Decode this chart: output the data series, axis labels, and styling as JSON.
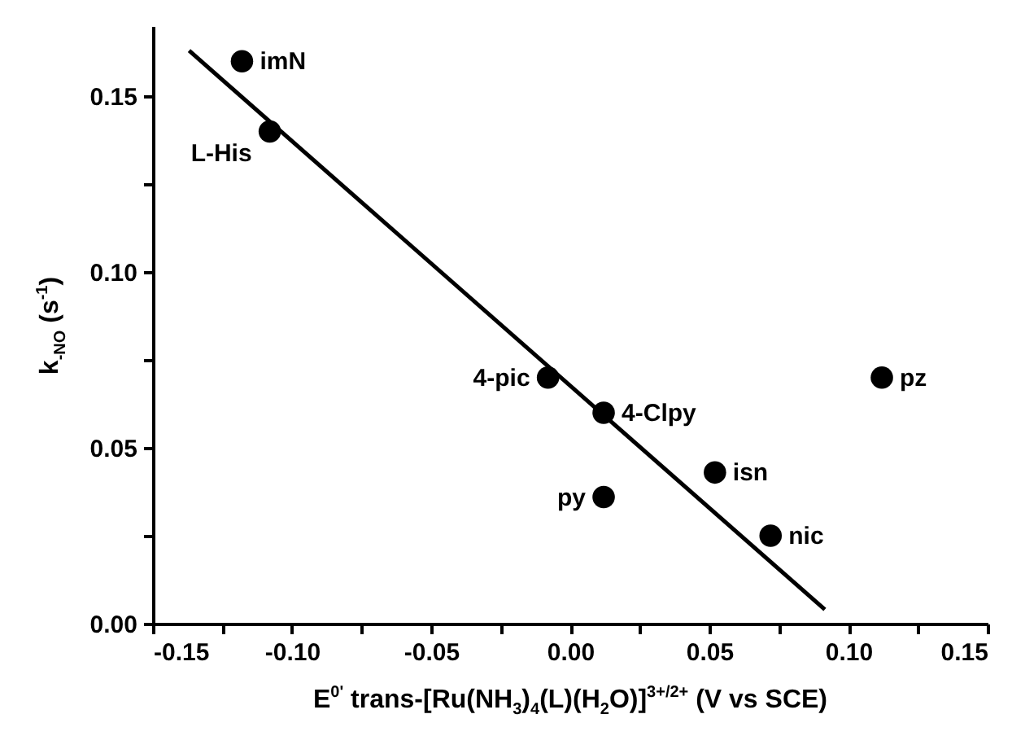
{
  "chart_data": {
    "type": "scatter",
    "xlabel": "E$^{0'}$ trans-[Ru(NH$_{3}$)$_{4}$(L)(H$_{2}$O)]$^{3+/2+}$ (V vs SCE)",
    "ylabel": "k$_{-NO}$ (s$^{-1}$)",
    "series": [
      {
        "marker": "circle",
        "color": "#000000",
        "x": [
          -0.118,
          -0.108,
          -0.008,
          0.012,
          0.012,
          0.052,
          0.072,
          0.112
        ],
        "values": [
          0.16,
          0.14,
          0.07,
          0.06,
          0.036,
          0.043,
          0.025,
          0.07
        ]
      },
      {
        "type": "line",
        "color": "#000000",
        "x": [
          -0.137,
          0.0915
        ],
        "values": [
          0.163,
          0.004
        ]
      }
    ],
    "annotations": [
      {
        "text": "imN",
        "x": -0.118,
        "y": 0.16
      },
      {
        "text": "L-His",
        "x": -0.108,
        "y": 0.14
      },
      {
        "text": "4-pic",
        "x": -0.008,
        "y": 0.07
      },
      {
        "text": "4-Clpy",
        "x": 0.012,
        "y": 0.06
      },
      {
        "text": "py",
        "x": 0.012,
        "y": 0.036
      },
      {
        "text": "isn",
        "x": 0.052,
        "y": 0.043
      },
      {
        "text": "nic",
        "x": 0.072,
        "y": 0.025
      },
      {
        "text": "pz",
        "x": 0.112,
        "y": 0.07
      }
    ],
    "xlim": [
      -0.15,
      0.15
    ],
    "xticks": [
      {
        "value": -0.15,
        "label": "-0.15"
      },
      {
        "value": -0.125,
        "label": null
      },
      {
        "value": -0.1,
        "label": "-0.10"
      },
      {
        "value": -0.075,
        "label": null
      },
      {
        "value": -0.05,
        "label": "-0.05"
      },
      {
        "value": -0.025,
        "label": null
      },
      {
        "value": 0,
        "label": "0.00"
      },
      {
        "value": 0.025,
        "label": null
      },
      {
        "value": 0.05,
        "label": "0.05"
      },
      {
        "value": 0.075,
        "label": null
      },
      {
        "value": 0.1,
        "label": "0.10"
      },
      {
        "value": 0.125,
        "label": null
      },
      {
        "value": 0.15,
        "label": "0.15"
      }
    ],
    "ylim": [
      0,
      0.17
    ],
    "yticks": [
      {
        "value": 0,
        "label": "0.00"
      },
      {
        "value": 0.025,
        "label": null
      },
      {
        "value": 0.05,
        "label": "0.05"
      },
      {
        "value": 0.075,
        "label": null
      },
      {
        "value": 0.1,
        "label": "0.10"
      },
      {
        "value": 0.125,
        "label": null
      },
      {
        "value": 0.15,
        "label": "0.15"
      }
    ],
    "grid": false,
    "line_style": "solid"
  }
}
